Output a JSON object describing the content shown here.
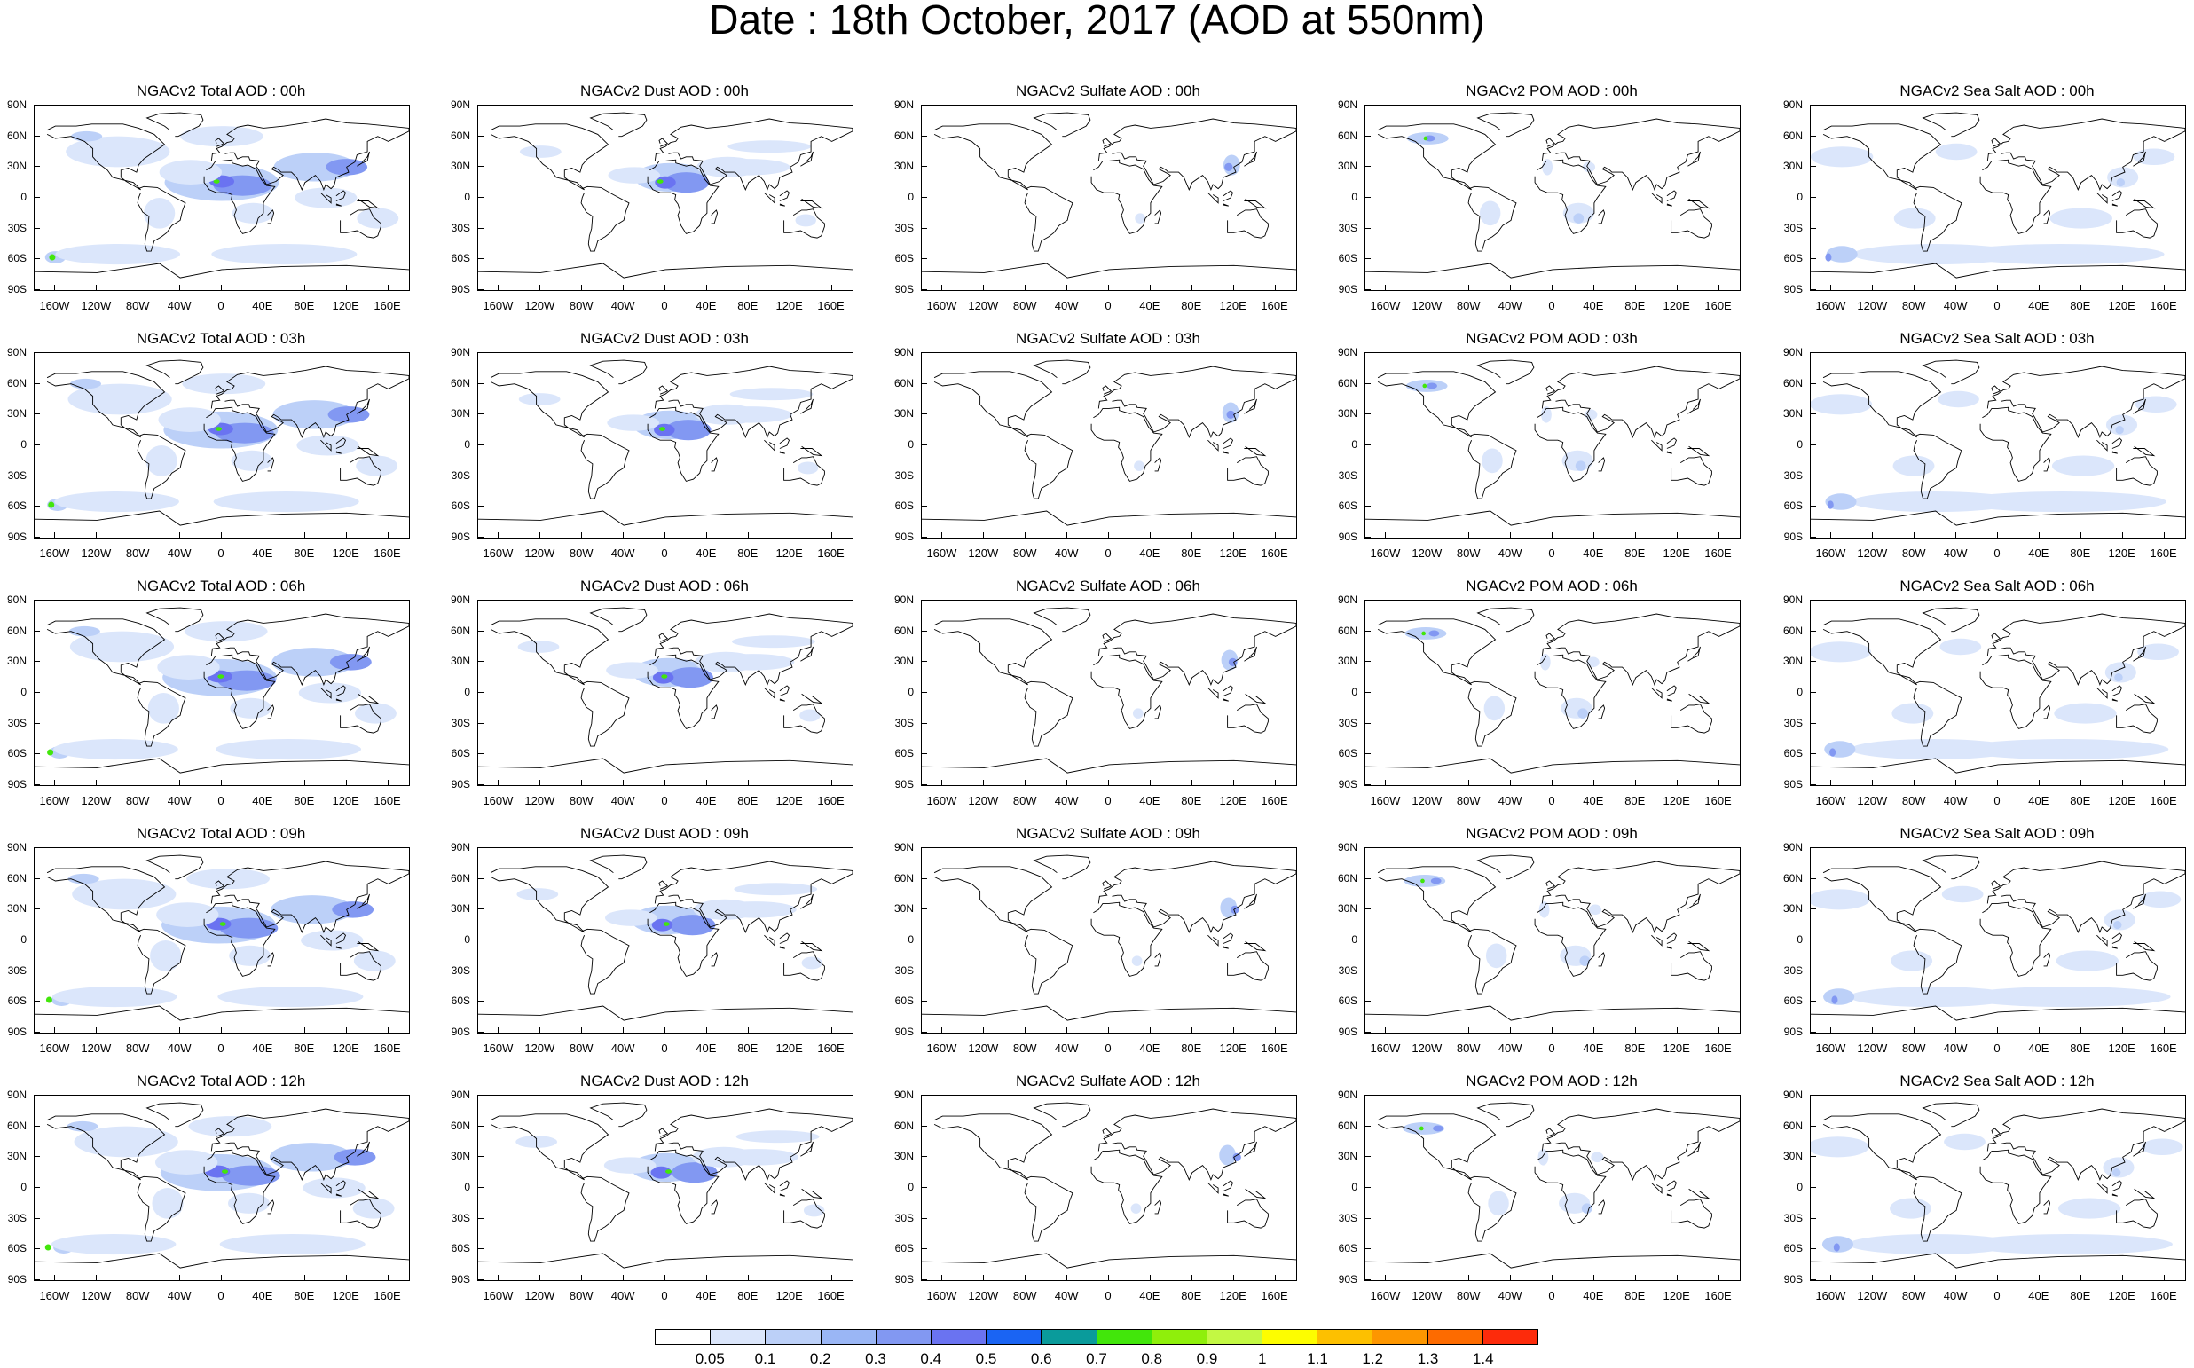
{
  "title": "Date : 18th October, 2017 (AOD at 550nm)",
  "lat_labels": [
    "90N",
    "60N",
    "30N",
    "0",
    "30S",
    "60S",
    "90S"
  ],
  "lon_labels": [
    "160W",
    "120W",
    "80W",
    "40W",
    "0",
    "40E",
    "80E",
    "120E",
    "160E"
  ],
  "rows": [
    {
      "hour": "00h",
      "titles": [
        "NGACv2 Total AOD : 00h",
        "NGACv2 Dust AOD : 00h",
        "NGACv2 Sulfate AOD : 00h",
        "NGACv2 POM AOD : 00h",
        "NGACv2 Sea Salt AOD : 00h"
      ]
    },
    {
      "hour": "03h",
      "titles": [
        "NGACv2 Total AOD : 03h",
        "NGACv2 Dust AOD : 03h",
        "NGACv2 Sulfate AOD : 03h",
        "NGACv2 POM AOD : 03h",
        "NGACv2 Sea Salt AOD : 03h"
      ]
    },
    {
      "hour": "06h",
      "titles": [
        "NGACv2 Total AOD : 06h",
        "NGACv2 Dust AOD : 06h",
        "NGACv2 Sulfate AOD : 06h",
        "NGACv2 POM AOD : 06h",
        "NGACv2 Sea Salt AOD : 06h"
      ]
    },
    {
      "hour": "09h",
      "titles": [
        "NGACv2 Total AOD : 09h",
        "NGACv2 Dust AOD : 09h",
        "NGACv2 Sulfate AOD : 09h",
        "NGACv2 POM AOD : 09h",
        "NGACv2 Sea Salt  AOD : 09h"
      ]
    },
    {
      "hour": "12h",
      "titles": [
        "NGACv2 Total AOD :  12h",
        "NGACv2 Dust AOD : 12h",
        "NGACv2 Sulfate AOD : 12h",
        "NGACv2 POM  AOD : 12h",
        "NGACv2 Sea Salt  AOD : 12h"
      ]
    }
  ],
  "colorbar": {
    "labels": [
      "0.05",
      "0.1",
      "0.2",
      "0.3",
      "0.4",
      "0.5",
      "0.6",
      "0.7",
      "0.8",
      "0.9",
      "1",
      "1.1",
      "1.2",
      "1.3",
      "1.4"
    ],
    "colors": [
      "#ffffff",
      "#dbe6fb",
      "#bcd0f8",
      "#9ab6f5",
      "#8298f2",
      "#6a73f1",
      "#1a64f3",
      "#0a9b9b",
      "#42e60b",
      "#8fef0b",
      "#c3f843",
      "#fdfd00",
      "#fdc000",
      "#fd9600",
      "#fd6b00",
      "#fd2b0b"
    ]
  },
  "map_colors": {
    "land_outline": "#000000",
    "haze_light": "#dbe6fb",
    "haze_mid": "#bcd0f8",
    "haze_strong": "#8298f2",
    "core": "#6a73f1",
    "peak": "#42e60b"
  }
}
